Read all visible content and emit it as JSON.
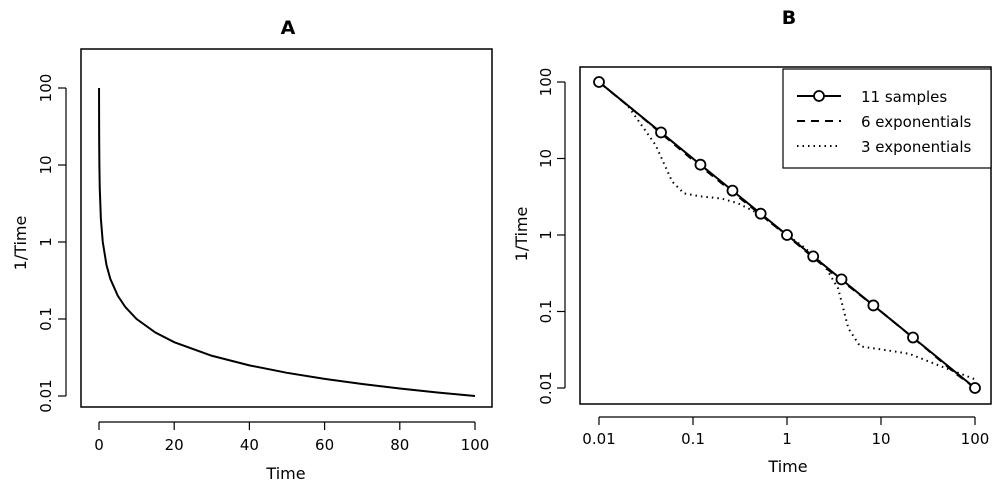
{
  "chart_data": [
    {
      "panel": "A",
      "type": "line",
      "title": "A",
      "xlabel": "Time",
      "ylabel": "1/Time",
      "xlim": [
        0,
        100
      ],
      "ylim": [
        0.01,
        100
      ],
      "y_scale": "log",
      "x_ticks": [
        0,
        20,
        40,
        60,
        80,
        100
      ],
      "x_tick_labels": [
        "0",
        "20",
        "40",
        "60",
        "80",
        "100"
      ],
      "y_ticks": [
        0.01,
        0.1,
        1,
        10,
        100
      ],
      "y_tick_labels": [
        "0.01",
        "0.1",
        "1",
        "10",
        "100"
      ],
      "grid": false,
      "series": [
        {
          "x": [
            0.01,
            0.02,
            0.05,
            0.1,
            0.2,
            0.5,
            1,
            2,
            3,
            5,
            7,
            10,
            15,
            20,
            30,
            40,
            50,
            60,
            70,
            80,
            90,
            100
          ],
          "y": [
            100,
            50,
            20,
            10,
            5,
            2,
            1,
            0.5,
            0.333,
            0.2,
            0.143,
            0.1,
            0.0667,
            0.05,
            0.0333,
            0.025,
            0.02,
            0.0167,
            0.0143,
            0.0125,
            0.0111,
            0.01
          ],
          "style": "solid"
        }
      ]
    },
    {
      "panel": "B",
      "type": "line",
      "title": "B",
      "xlabel": "Time",
      "ylabel": "1/Time",
      "xlim": [
        0.01,
        100
      ],
      "ylim": [
        0.01,
        100
      ],
      "x_scale": "log",
      "y_scale": "log",
      "x_ticks": [
        0.01,
        0.1,
        1,
        10,
        100
      ],
      "x_tick_labels": [
        "0.01",
        "0.1",
        "1",
        "10",
        "100"
      ],
      "y_ticks": [
        0.01,
        0.1,
        1,
        10,
        100
      ],
      "y_tick_labels": [
        "0.01",
        "0.1",
        "1",
        "10",
        "100"
      ],
      "grid": false,
      "legend_position": "top-right",
      "series": [
        {
          "name": "11 samples",
          "style": "solid",
          "markers": "open-circle",
          "x": [
            0.01,
            0.0457,
            0.12,
            0.263,
            0.525,
            1,
            1.9,
            3.8,
            8.3,
            21.9,
            100
          ],
          "y": [
            100,
            21.9,
            8.3,
            3.8,
            1.9,
            1,
            0.525,
            0.263,
            0.12,
            0.0457,
            0.01
          ]
        },
        {
          "name": "6 exponentials",
          "style": "dashed",
          "x": [
            0.01,
            0.03,
            0.1,
            0.3,
            1,
            3,
            10,
            30,
            60,
            100
          ],
          "y": [
            100,
            33,
            9.5,
            3.2,
            0.98,
            0.32,
            0.1,
            0.033,
            0.016,
            0.01
          ]
        },
        {
          "name": "3 exponentials",
          "style": "dotted",
          "x": [
            0.01,
            0.02,
            0.04,
            0.06,
            0.08,
            0.12,
            0.2,
            0.3,
            0.5,
            1,
            1.5,
            2.5,
            3.5,
            4.5,
            6,
            10,
            20,
            40,
            100
          ],
          "y": [
            100,
            50,
            15,
            5,
            3.5,
            3.2,
            3.0,
            2.6,
            1.9,
            1.0,
            0.7,
            0.4,
            0.2,
            0.06,
            0.035,
            0.032,
            0.028,
            0.02,
            0.013
          ]
        }
      ]
    }
  ]
}
